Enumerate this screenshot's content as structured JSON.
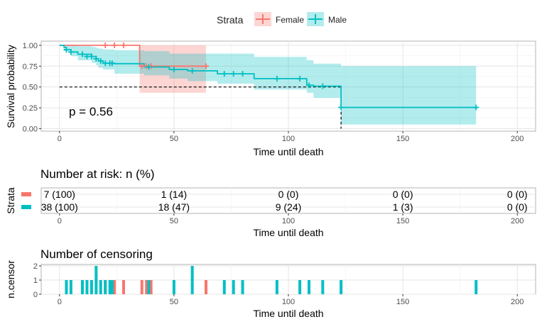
{
  "legend": {
    "title": "Strata",
    "items": [
      {
        "label": "Female",
        "color": "#F8766D"
      },
      {
        "label": "Male",
        "color": "#00BFC4"
      }
    ]
  },
  "colors": {
    "female": "#F8766D",
    "male": "#00BFC4",
    "female_band": "#F8766D",
    "male_band": "#00BFC4",
    "panel_border": "#b3b3b3",
    "grid": "#e5e5e5"
  },
  "chart_data": [
    {
      "id": "survival",
      "type": "line",
      "subtype": "step",
      "xlabel": "Time until death",
      "ylabel": "Survival probability",
      "xlim": [
        -8,
        208
      ],
      "ylim": [
        -0.03,
        1.05
      ],
      "xticks": [
        0,
        50,
        100,
        150,
        200
      ],
      "yticks": [
        0,
        0.25,
        0.5,
        0.75,
        1
      ],
      "ytick_labels": [
        "0.00",
        "0.25",
        "0.50",
        "0.75",
        "1.00"
      ],
      "annotation": "p = 0.56",
      "median_line": {
        "y": 0.5,
        "x_end": 123
      },
      "series": [
        {
          "name": "Female",
          "steps": [
            [
              0,
              1.0
            ],
            [
              35,
              1.0
            ],
            [
              35,
              0.75
            ],
            [
              64,
              0.75
            ]
          ],
          "ci": [
            [
              0,
              1.0,
              1.0
            ],
            [
              35,
              1.0,
              1.0
            ],
            [
              35,
              0.43,
              1.0
            ],
            [
              64,
              0.43,
              1.0
            ]
          ],
          "censor": [
            [
              20,
              1.0
            ],
            [
              24,
              1.0
            ],
            [
              28,
              1.0
            ],
            [
              36,
              0.75
            ],
            [
              38,
              0.75
            ],
            [
              40,
              0.75
            ],
            [
              64,
              0.75
            ]
          ]
        },
        {
          "name": "Male",
          "steps": [
            [
              0,
              1.0
            ],
            [
              2,
              1.0
            ],
            [
              2,
              0.974
            ],
            [
              3,
              0.974
            ],
            [
              3,
              0.947
            ],
            [
              5,
              0.947
            ],
            [
              5,
              0.92
            ],
            [
              8,
              0.92
            ],
            [
              8,
              0.893
            ],
            [
              14,
              0.893
            ],
            [
              14,
              0.866
            ],
            [
              16,
              0.866
            ],
            [
              16,
              0.839
            ],
            [
              17,
              0.839
            ],
            [
              17,
              0.812
            ],
            [
              19,
              0.812
            ],
            [
              19,
              0.785
            ],
            [
              24,
              0.785
            ],
            [
              24,
              0.78
            ],
            [
              37,
              0.78
            ],
            [
              37,
              0.74
            ],
            [
              48,
              0.74
            ],
            [
              48,
              0.71
            ],
            [
              56,
              0.71
            ],
            [
              56,
              0.694
            ],
            [
              69,
              0.694
            ],
            [
              69,
              0.658
            ],
            [
              85,
              0.658
            ],
            [
              85,
              0.6
            ],
            [
              108,
              0.6
            ],
            [
              108,
              0.52
            ],
            [
              111,
              0.52
            ],
            [
              111,
              0.51
            ],
            [
              123,
              0.51
            ],
            [
              123,
              0.255
            ],
            [
              182,
              0.255
            ]
          ],
          "ci": [
            [
              0,
              1.0,
              1.0
            ],
            [
              2,
              1.0,
              1.0
            ],
            [
              2,
              0.93,
              1.0
            ],
            [
              5,
              0.87,
              1.0
            ],
            [
              8,
              0.82,
              0.99
            ],
            [
              14,
              0.79,
              0.98
            ],
            [
              16,
              0.76,
              0.97
            ],
            [
              17,
              0.73,
              0.96
            ],
            [
              19,
              0.71,
              0.95
            ],
            [
              24,
              0.66,
              0.94
            ],
            [
              37,
              0.64,
              0.93
            ],
            [
              48,
              0.6,
              0.9
            ],
            [
              56,
              0.57,
              0.9
            ],
            [
              69,
              0.54,
              0.9
            ],
            [
              85,
              0.47,
              0.86
            ],
            [
              108,
              0.43,
              0.82
            ],
            [
              111,
              0.37,
              0.78
            ],
            [
              123,
              0.05,
              0.75
            ],
            [
              182,
              0.05,
              0.75
            ]
          ],
          "censor": [
            [
              3,
              0.947
            ],
            [
              5,
              0.92
            ],
            [
              10,
              0.893
            ],
            [
              12,
              0.866
            ],
            [
              14,
              0.866
            ],
            [
              16,
              0.839
            ],
            [
              18,
              0.812
            ],
            [
              20,
              0.785
            ],
            [
              22,
              0.785
            ],
            [
              23,
              0.785
            ],
            [
              39,
              0.74
            ],
            [
              50,
              0.71
            ],
            [
              58,
              0.694
            ],
            [
              72,
              0.658
            ],
            [
              76,
              0.658
            ],
            [
              80,
              0.658
            ],
            [
              95,
              0.6
            ],
            [
              105,
              0.6
            ],
            [
              109,
              0.52
            ],
            [
              115,
              0.51
            ],
            [
              123,
              0.255
            ],
            [
              182,
              0.255
            ]
          ]
        }
      ]
    },
    {
      "id": "risk-table",
      "type": "table",
      "title": "Number at risk: n (%)",
      "ylabel": "Strata",
      "xlabel": "Time until death",
      "xticks": [
        0,
        50,
        100,
        150,
        200
      ],
      "rows": [
        {
          "strata": "Female",
          "values": [
            "7 (100)",
            "1 (14)",
            "0 (0)",
            "0 (0)",
            "0 (0)"
          ]
        },
        {
          "strata": "Male",
          "values": [
            "38 (100)",
            "18 (47)",
            "9 (24)",
            "1 (3)",
            "0 (0)"
          ]
        }
      ]
    },
    {
      "id": "censoring",
      "type": "bar",
      "title": "Number of censoring",
      "xlabel": "Time until death",
      "ylabel": "n.censor",
      "xticks": [
        0,
        50,
        100,
        150,
        200
      ],
      "yticks": [
        0,
        1,
        2
      ],
      "ylim": [
        0,
        2.1
      ],
      "series": [
        {
          "name": "Female",
          "x": [
            20,
            24,
            28,
            36,
            38,
            40,
            64
          ],
          "values": [
            1,
            1,
            1,
            1,
            1,
            1,
            1
          ]
        },
        {
          "name": "Male",
          "x": [
            3,
            5,
            10,
            12,
            14,
            16,
            18,
            20,
            22,
            23,
            39,
            50,
            58,
            72,
            76,
            80,
            95,
            105,
            109,
            115,
            123,
            182
          ],
          "values": [
            1,
            1,
            1,
            1,
            1,
            2,
            1,
            1,
            1,
            1,
            1,
            1,
            2,
            1,
            1,
            1,
            1,
            1,
            1,
            1,
            1,
            1
          ]
        }
      ]
    }
  ]
}
